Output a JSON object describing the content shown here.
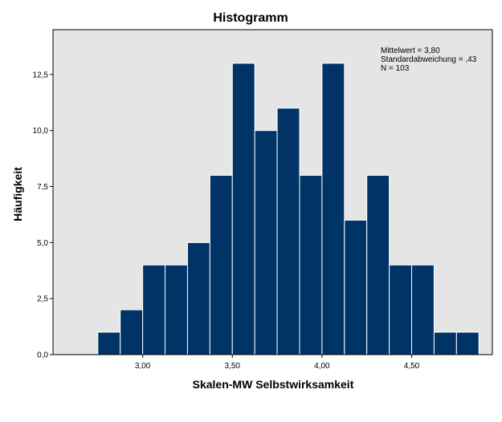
{
  "chart_data": {
    "type": "bar",
    "title": "Histogramm",
    "xlabel": "Skalen-MW Selbstwirksamkeit",
    "ylabel": "Häufigkeit",
    "bin_width": 0.125,
    "bins_start": [
      2.75,
      2.875,
      3.0,
      3.125,
      3.25,
      3.375,
      3.5,
      3.625,
      3.75,
      3.875,
      4.0,
      4.125,
      4.25,
      4.375,
      4.5,
      4.625,
      4.75
    ],
    "values": [
      1,
      2,
      4,
      4,
      5,
      8,
      13,
      10,
      11,
      8,
      13,
      6,
      8,
      4,
      4,
      1,
      1
    ],
    "xlim": [
      2.5,
      4.95
    ],
    "ylim": [
      0,
      14.5
    ],
    "x_ticks": [
      3.0,
      3.5,
      4.0,
      4.5
    ],
    "x_tick_labels": [
      "3,00",
      "3,50",
      "4,00",
      "4,50"
    ],
    "y_ticks": [
      0,
      2.5,
      5,
      7.5,
      10,
      12.5
    ],
    "y_tick_labels": [
      "0,0",
      "2,5",
      "5,0",
      "7,5",
      "10,0",
      "12,5"
    ],
    "grid": false,
    "colors": {
      "bar": "#003366",
      "bar_edge": "#ffffff",
      "plot_bg": "#e5e5e5"
    },
    "stats": {
      "mean": "Mittelwert = 3,80",
      "sd": "Standardabweichung = ,43",
      "n": "N = 103"
    }
  }
}
